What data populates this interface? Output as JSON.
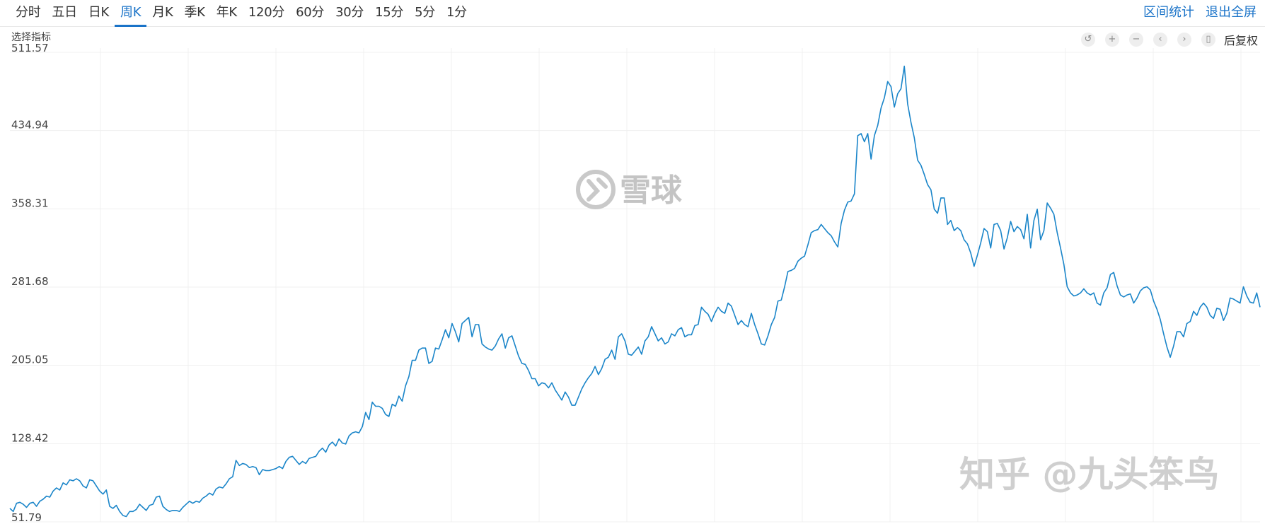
{
  "toolbar": {
    "tabs": [
      "分时",
      "五日",
      "日K",
      "周K",
      "月K",
      "季K",
      "年K",
      "120分",
      "60分",
      "30分",
      "15分",
      "5分",
      "1分"
    ],
    "active_tab": "周K",
    "interval_stats": "区间统计",
    "exit_fullscreen": "退出全屏"
  },
  "indicator_selector": "选择指标",
  "chart_tools": {
    "icons": [
      "undo-icon",
      "zoom-in-icon",
      "zoom-out-icon",
      "prev-icon",
      "next-icon",
      "candlestick-icon"
    ],
    "adjust": "后复权"
  },
  "watermarks": {
    "xueqiu": "雪球",
    "zhihu": "知乎 @九头笨鸟"
  },
  "colors": {
    "line": "#1a85c9",
    "active_tab": "#1a73c8",
    "grid": "#f0f0f0"
  },
  "chart_data": {
    "type": "line",
    "ytick_labels": [
      "511.57",
      "434.94",
      "358.31",
      "281.68",
      "205.05",
      "128.42",
      "51.79"
    ],
    "ylim": [
      51.79,
      511.57
    ],
    "grid": true,
    "series": [
      {
        "values": [
          65,
          62,
          70,
          71,
          69,
          66,
          70,
          71,
          67,
          72,
          74,
          77,
          76,
          82,
          85,
          83,
          90,
          88,
          93,
          92,
          94,
          92,
          87,
          85,
          93,
          92,
          87,
          82,
          79,
          83,
          67,
          65,
          68,
          62,
          58,
          57,
          62,
          62,
          64,
          69,
          66,
          63,
          68,
          69,
          76,
          77,
          67,
          64,
          62,
          63,
          63,
          62,
          66,
          69,
          72,
          70,
          72,
          71,
          75,
          77,
          80,
          78,
          84,
          86,
          85,
          89,
          94,
          96,
          112,
          107,
          109,
          108,
          105,
          106,
          105,
          98,
          103,
          102,
          102,
          103,
          104,
          106,
          104,
          111,
          115,
          116,
          112,
          108,
          111,
          109,
          114,
          115,
          116,
          121,
          124,
          120,
          127,
          130,
          126,
          133,
          129,
          128,
          136,
          139,
          140,
          139,
          145,
          159,
          152,
          169,
          165,
          165,
          163,
          157,
          155,
          167,
          165,
          175,
          170,
          185,
          194,
          210,
          210,
          220,
          222,
          222,
          207,
          209,
          222,
          221,
          230,
          240,
          232,
          246,
          238,
          228,
          246,
          249,
          252,
          233,
          245,
          245,
          226,
          223,
          221,
          220,
          224,
          231,
          236,
          222,
          232,
          234,
          224,
          214,
          207,
          206,
          200,
          192,
          192,
          185,
          188,
          187,
          183,
          188,
          181,
          176,
          171,
          179,
          174,
          166,
          166,
          174,
          182,
          188,
          193,
          197,
          204,
          196,
          202,
          211,
          213,
          220,
          211,
          233,
          236,
          229,
          216,
          215,
          219,
          223,
          216,
          229,
          233,
          243,
          236,
          229,
          232,
          226,
          228,
          236,
          234,
          240,
          242,
          233,
          235,
          235,
          244,
          245,
          262,
          258,
          255,
          248,
          256,
          262,
          258,
          256,
          266,
          263,
          254,
          245,
          249,
          245,
          243,
          256,
          245,
          236,
          226,
          225,
          234,
          245,
          252,
          268,
          269,
          282,
          297,
          298,
          300,
          307,
          310,
          312,
          323,
          335,
          337,
          338,
          343,
          339,
          335,
          332,
          326,
          321,
          344,
          357,
          365,
          366,
          373,
          430,
          432,
          424,
          432,
          407,
          430,
          440,
          457,
          467,
          483,
          478,
          458,
          471,
          476,
          498,
          461,
          443,
          428,
          406,
          401,
          392,
          382,
          377,
          358,
          354,
          369,
          369,
          343,
          347,
          337,
          340,
          337,
          328,
          324,
          315,
          302,
          313,
          325,
          339,
          336,
          320,
          343,
          344,
          337,
          319,
          330,
          346,
          336,
          341,
          338,
          329,
          353,
          320,
          347,
          358,
          328,
          337,
          364,
          359,
          353,
          335,
          320,
          304,
          282,
          276,
          273,
          274,
          276,
          280,
          276,
          274,
          276,
          266,
          264,
          276,
          281,
          294,
          296,
          283,
          274,
          272,
          274,
          275,
          266,
          271,
          278,
          281,
          282,
          279,
          268,
          260,
          250,
          236,
          223,
          213,
          224,
          238,
          238,
          233,
          246,
          248,
          258,
          254,
          262,
          266,
          262,
          254,
          251,
          261,
          260,
          249,
          256,
          271,
          270,
          268,
          266,
          282,
          273,
          267,
          266,
          276,
          262
        ]
      }
    ]
  }
}
